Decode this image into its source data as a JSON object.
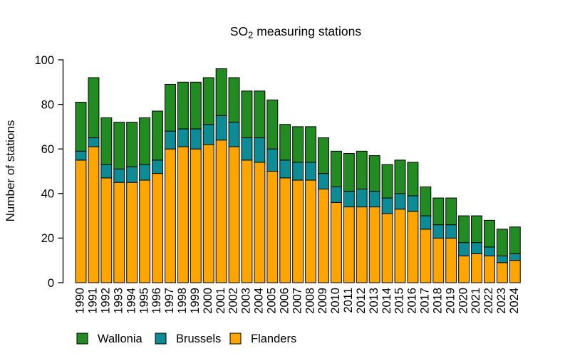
{
  "title": {
    "prefix": "SO",
    "sub": "2",
    "suffix": " measuring stations",
    "full": "SO2 measuring stations"
  },
  "y_axis": {
    "label": "Number of stations",
    "ticks": [
      0,
      20,
      40,
      60,
      80,
      100
    ]
  },
  "legend": {
    "items": [
      "Wallonia",
      "Brussels",
      "Flanders"
    ]
  },
  "chart_data": {
    "type": "bar",
    "stacked": true,
    "title": "SO2 measuring stations",
    "xlabel": "",
    "ylabel": "Number of stations",
    "ylim": [
      0,
      100
    ],
    "grid": false,
    "legend_position": "bottom-left",
    "legend_order": [
      "Wallonia",
      "Brussels",
      "Flanders"
    ],
    "stack_order_bottom_to_top": [
      "Flanders",
      "Brussels",
      "Wallonia"
    ],
    "categories": [
      "1990",
      "1991",
      "1992",
      "1993",
      "1994",
      "1995",
      "1996",
      "1997",
      "1998",
      "1999",
      "2000",
      "2001",
      "2002",
      "2003",
      "2004",
      "2005",
      "2006",
      "2007",
      "2008",
      "2009",
      "2010",
      "2011",
      "2012",
      "2013",
      "2014",
      "2015",
      "2016",
      "2017",
      "2018",
      "2019",
      "2020",
      "2021",
      "2022",
      "2023",
      "2024"
    ],
    "series": [
      {
        "name": "Wallonia",
        "color": "#228B22",
        "values": [
          22,
          27,
          21,
          21,
          20,
          21,
          22,
          21,
          21,
          21,
          21,
          21,
          20,
          21,
          21,
          22,
          16,
          16,
          16,
          16,
          16,
          17,
          17,
          16,
          15,
          15,
          15,
          13,
          12,
          12,
          12,
          12,
          12,
          12,
          12
        ]
      },
      {
        "name": "Brussels",
        "color": "#0E8C95",
        "values": [
          4,
          4,
          6,
          6,
          7,
          7,
          6,
          8,
          8,
          9,
          9,
          11,
          11,
          10,
          11,
          10,
          8,
          8,
          8,
          7,
          7,
          7,
          8,
          7,
          7,
          7,
          7,
          6,
          6,
          6,
          6,
          5,
          4,
          3,
          3
        ]
      },
      {
        "name": "Flanders",
        "color": "#FFA500",
        "values": [
          55,
          61,
          47,
          45,
          45,
          46,
          49,
          60,
          61,
          60,
          62,
          64,
          61,
          55,
          54,
          50,
          47,
          46,
          46,
          42,
          36,
          34,
          34,
          34,
          31,
          33,
          32,
          24,
          20,
          20,
          12,
          13,
          12,
          9,
          10
        ]
      }
    ],
    "totals": [
      81,
      92,
      74,
      72,
      72,
      74,
      77,
      89,
      90,
      90,
      92,
      96,
      92,
      86,
      86,
      82,
      71,
      70,
      70,
      65,
      59,
      58,
      59,
      57,
      53,
      55,
      54,
      43,
      38,
      38,
      30,
      30,
      28,
      24,
      25
    ]
  }
}
